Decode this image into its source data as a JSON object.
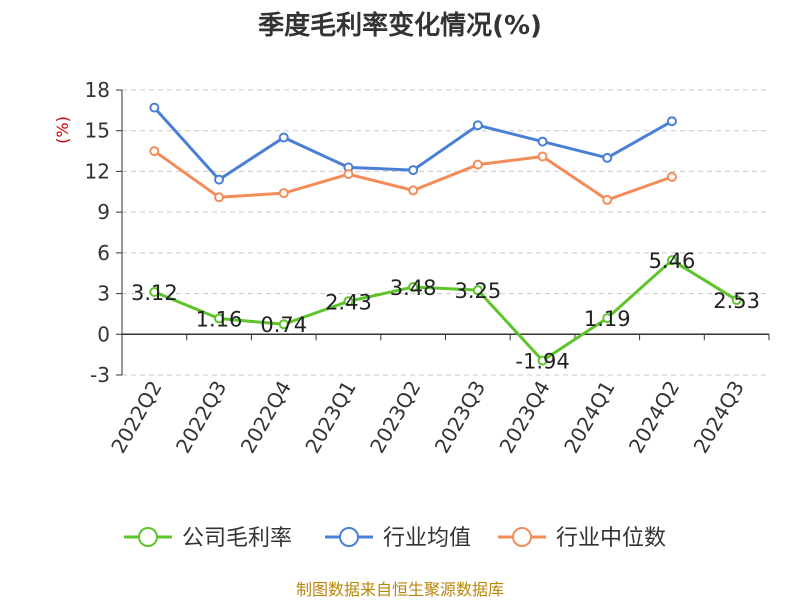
{
  "chart_data": {
    "type": "line",
    "title": "季度毛利率变化情况(%)",
    "ylabel": "(%)",
    "xlabel": "",
    "categories": [
      "2022Q2",
      "2022Q3",
      "2022Q4",
      "2023Q1",
      "2023Q2",
      "2023Q3",
      "2023Q4",
      "2024Q1",
      "2024Q2",
      "2024Q3"
    ],
    "ylim": [
      -3,
      18
    ],
    "yticks": [
      "18",
      "15",
      "12",
      "9",
      "6",
      "3",
      "0",
      "-3"
    ],
    "grid": true,
    "legend_position": "bottom",
    "series": [
      {
        "name": "公司毛利率",
        "color": "#5ec42b",
        "show_labels": true,
        "values": [
          3.12,
          1.16,
          0.74,
          2.43,
          3.48,
          3.25,
          -1.94,
          1.19,
          5.46,
          2.53
        ],
        "labels": [
          "3.12",
          "1.16",
          "0.74",
          "2.43",
          "3.48",
          "3.25",
          "-1.94",
          "1.19",
          "5.46",
          "2.53"
        ]
      },
      {
        "name": "行业均值",
        "color": "#4a7fd6",
        "show_labels": false,
        "values": [
          16.7,
          11.4,
          14.5,
          12.3,
          12.1,
          15.4,
          14.2,
          13.0,
          15.7,
          null
        ]
      },
      {
        "name": "行业中位数",
        "color": "#f48c5a",
        "show_labels": false,
        "values": [
          13.5,
          10.1,
          10.4,
          11.8,
          10.6,
          12.5,
          13.1,
          9.9,
          11.6,
          null
        ]
      }
    ]
  },
  "source_text": "制图数据来自恒生聚源数据库"
}
